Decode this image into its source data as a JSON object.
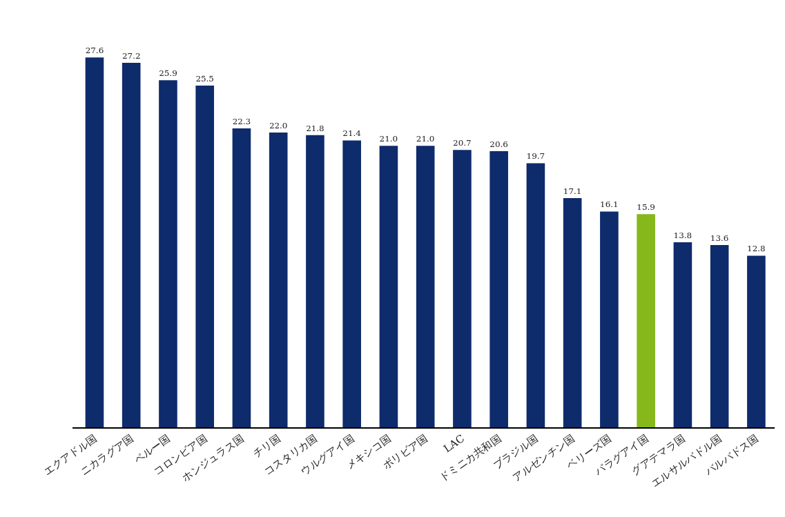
{
  "chart_data": {
    "type": "bar",
    "categories": [
      "エクアドル国",
      "ニカラグア国",
      "ペルー国",
      "コロンビア国",
      "ホンジュラス国",
      "チリ国",
      "コスタリカ国",
      "ウルグアイ国",
      "メキシコ国",
      "ボリビア国",
      "LAC",
      "ドミニカ共和国",
      "ブラジル国",
      "アルゼンチン国",
      "ベリーズ国",
      "パラグアイ国",
      "グアテマラ国",
      "エルサルバドル国",
      "バルバドス国"
    ],
    "values": [
      27.6,
      27.2,
      25.9,
      25.5,
      22.3,
      22.0,
      21.8,
      21.4,
      21.0,
      21.0,
      20.7,
      20.6,
      19.7,
      17.1,
      16.1,
      15.9,
      13.8,
      13.6,
      12.8
    ],
    "value_labels": [
      "27.6",
      "27.2",
      "25.9",
      "25.5",
      "22.3",
      "22.0",
      "21.8",
      "21.4",
      "21.0",
      "21.0",
      "20.7",
      "20.6",
      "19.7",
      "17.1",
      "16.1",
      "15.9",
      "13.8",
      "13.6",
      "12.8"
    ],
    "colors": [
      "#0e2b6c",
      "#0e2b6c",
      "#0e2b6c",
      "#0e2b6c",
      "#0e2b6c",
      "#0e2b6c",
      "#0e2b6c",
      "#0e2b6c",
      "#0e2b6c",
      "#0e2b6c",
      "#0e2b6c",
      "#0e2b6c",
      "#0e2b6c",
      "#0e2b6c",
      "#0e2b6c",
      "#86b81c",
      "#0e2b6c",
      "#0e2b6c",
      "#0e2b6c"
    ],
    "tick_labels": "x",
    "grid": false,
    "legend": false
  }
}
